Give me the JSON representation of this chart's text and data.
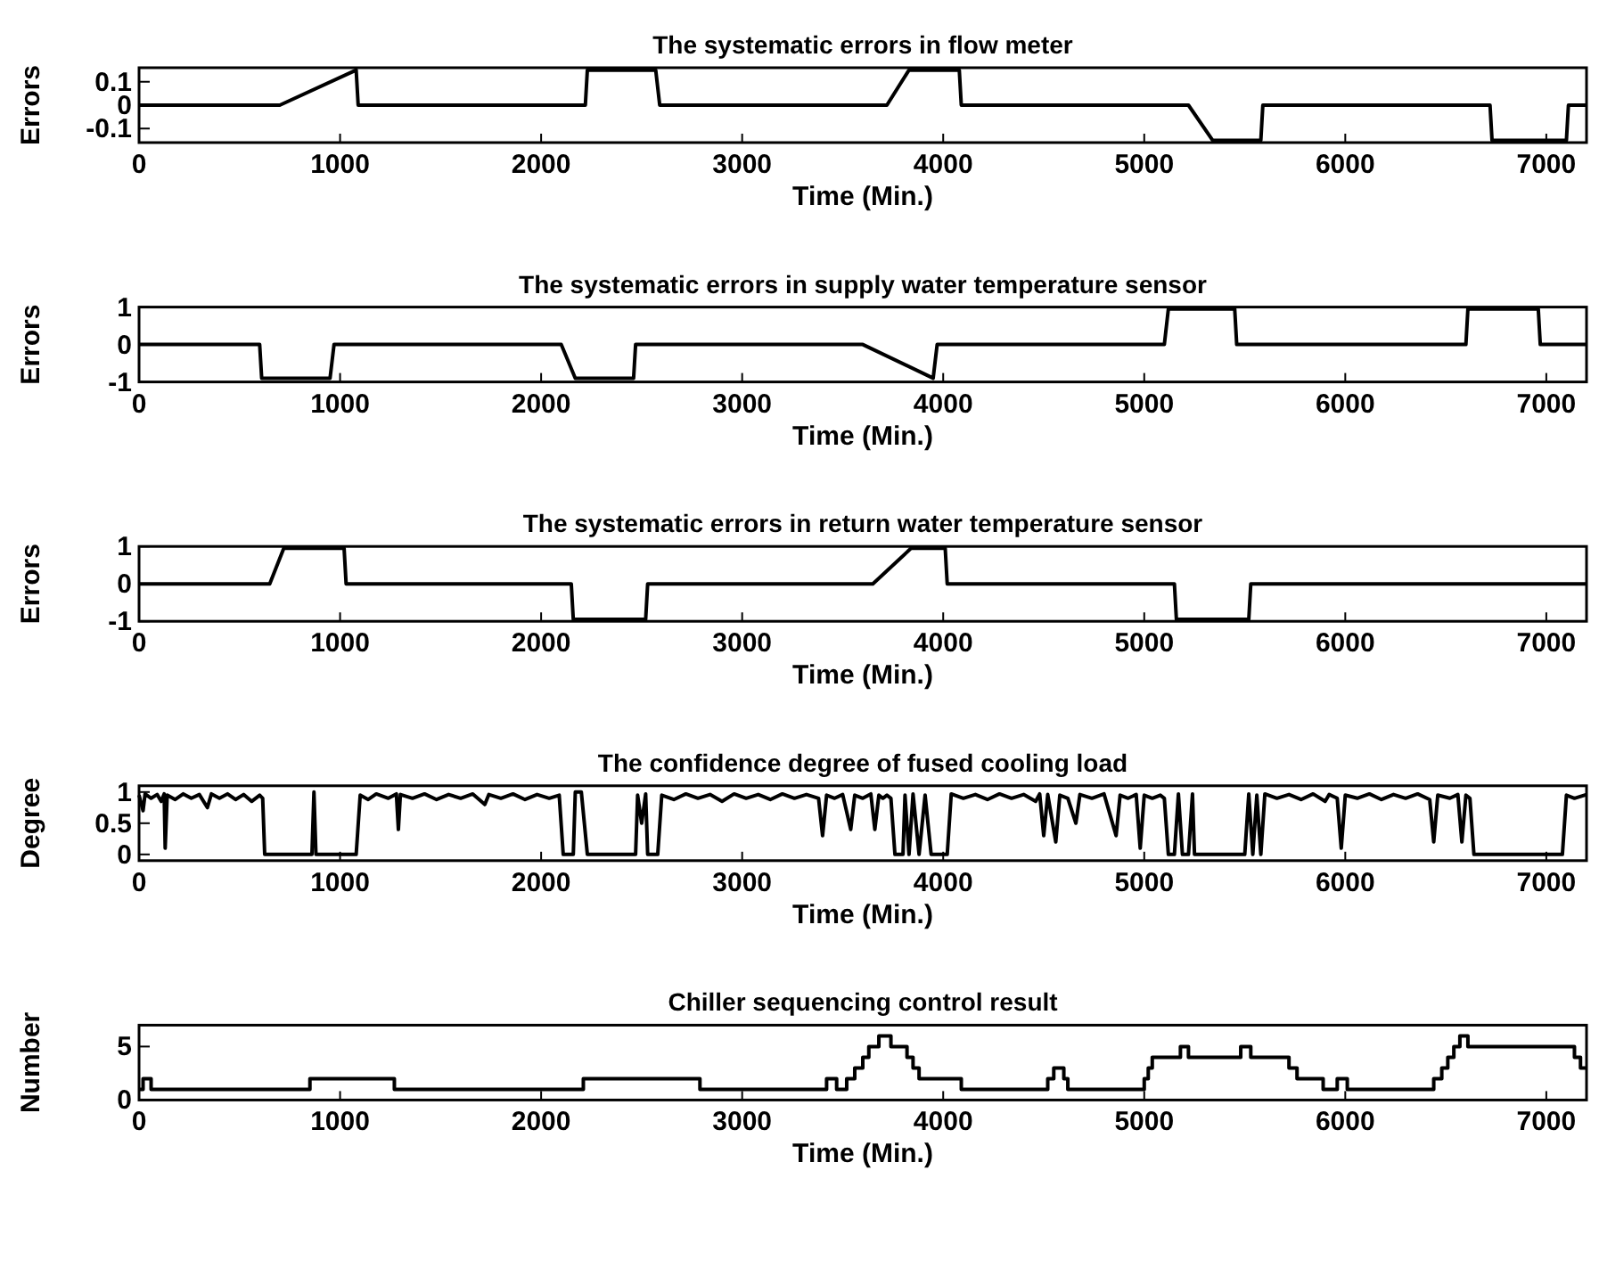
{
  "chart_data": [
    {
      "type": "line",
      "title": "The systematic errors in flow meter",
      "xlabel": "Time (Min.)",
      "ylabel": "Errors",
      "xlim": [
        0,
        7200
      ],
      "xticks": [
        0,
        1000,
        2000,
        3000,
        4000,
        5000,
        6000,
        7000
      ],
      "ylim": [
        -0.16,
        0.16
      ],
      "yticks": [
        -0.1,
        0,
        0.1
      ],
      "color": "#000000",
      "x": [
        0,
        700,
        1080,
        1090,
        2220,
        2230,
        2570,
        2590,
        3720,
        3830,
        4080,
        4090,
        5220,
        5340,
        5580,
        5590,
        6720,
        6730,
        7100,
        7110,
        7200
      ],
      "values": [
        0,
        0,
        0.15,
        0,
        0,
        0.15,
        0.15,
        0,
        0,
        0.15,
        0.15,
        0,
        0,
        -0.15,
        -0.15,
        0,
        0,
        -0.15,
        -0.15,
        0,
        0
      ]
    },
    {
      "type": "line",
      "title": "The systematic errors in supply water temperature sensor",
      "xlabel": "Time (Min.)",
      "ylabel": "Errors",
      "xlim": [
        0,
        7200
      ],
      "xticks": [
        0,
        1000,
        2000,
        3000,
        4000,
        5000,
        6000,
        7000
      ],
      "ylim": [
        -1,
        1
      ],
      "yticks": [
        -1,
        0,
        1
      ],
      "color": "#000000",
      "x": [
        0,
        600,
        610,
        950,
        970,
        2100,
        2170,
        2460,
        2470,
        3600,
        3950,
        3970,
        5100,
        5120,
        5450,
        5460,
        6600,
        6610,
        6960,
        6970,
        7200
      ],
      "values": [
        0,
        0,
        -0.9,
        -0.9,
        0,
        0,
        -0.9,
        -0.9,
        0,
        0,
        -0.9,
        0,
        0,
        0.95,
        0.95,
        0,
        0,
        0.95,
        0.95,
        0,
        0
      ]
    },
    {
      "type": "line",
      "title": "The systematic errors in return water temperature sensor",
      "xlabel": "Time (Min.)",
      "ylabel": "Errors",
      "xlim": [
        0,
        7200
      ],
      "xticks": [
        0,
        1000,
        2000,
        3000,
        4000,
        5000,
        6000,
        7000
      ],
      "ylim": [
        -1,
        1
      ],
      "yticks": [
        -1,
        0,
        1
      ],
      "color": "#000000",
      "x": [
        0,
        650,
        720,
        1020,
        1030,
        2150,
        2160,
        2520,
        2530,
        3650,
        3840,
        4010,
        4020,
        5150,
        5160,
        5520,
        5530,
        7200
      ],
      "values": [
        0,
        0,
        0.95,
        0.95,
        0,
        0,
        -0.95,
        -0.95,
        0,
        0,
        0.95,
        0.95,
        0,
        0,
        -0.95,
        -0.95,
        0,
        0
      ]
    },
    {
      "type": "line",
      "title": "The confidence degree of fused cooling load",
      "xlabel": "Time (Min.)",
      "ylabel": "Degree",
      "xlim": [
        0,
        7200
      ],
      "xticks": [
        0,
        1000,
        2000,
        3000,
        4000,
        5000,
        6000,
        7000
      ],
      "ylim": [
        -0.1,
        1.1
      ],
      "yticks": [
        0,
        0.5,
        1
      ],
      "color": "#000000",
      "x": [
        0,
        20,
        30,
        60,
        90,
        110,
        125,
        130,
        140,
        180,
        220,
        260,
        300,
        340,
        360,
        400,
        440,
        480,
        520,
        560,
        600,
        615,
        625,
        860,
        870,
        880,
        1080,
        1100,
        1140,
        1180,
        1240,
        1280,
        1290,
        1300,
        1360,
        1420,
        1480,
        1540,
        1600,
        1660,
        1720,
        1740,
        1800,
        1860,
        1920,
        1980,
        2040,
        2090,
        2110,
        2160,
        2170,
        2200,
        2230,
        2470,
        2480,
        2500,
        2520,
        2530,
        2580,
        2600,
        2660,
        2720,
        2780,
        2840,
        2900,
        2960,
        3020,
        3080,
        3140,
        3200,
        3260,
        3320,
        3380,
        3400,
        3420,
        3460,
        3500,
        3540,
        3560,
        3600,
        3640,
        3660,
        3680,
        3700,
        3720,
        3740,
        3760,
        3800,
        3810,
        3830,
        3850,
        3880,
        3910,
        3940,
        4020,
        4040,
        4100,
        4160,
        4220,
        4280,
        4340,
        4400,
        4460,
        4480,
        4500,
        4520,
        4560,
        4580,
        4620,
        4660,
        4680,
        4740,
        4800,
        4860,
        4880,
        4920,
        4960,
        4980,
        5000,
        5040,
        5080,
        5100,
        5120,
        5150,
        5170,
        5190,
        5220,
        5240,
        5250,
        5500,
        5520,
        5540,
        5560,
        5580,
        5600,
        5660,
        5720,
        5780,
        5840,
        5900,
        5920,
        5960,
        5980,
        6000,
        6060,
        6120,
        6180,
        6240,
        6300,
        6360,
        6420,
        6440,
        6460,
        6520,
        6560,
        6580,
        6600,
        6620,
        6640,
        7080,
        7100,
        7140,
        7200
      ],
      "values": [
        0.95,
        0.7,
        0.97,
        0.9,
        0.96,
        0.85,
        0.97,
        0.1,
        0.95,
        0.88,
        0.97,
        0.9,
        0.96,
        0.75,
        0.97,
        0.9,
        0.97,
        0.88,
        0.96,
        0.85,
        0.95,
        0.9,
        0,
        0,
        1,
        0,
        0,
        0.95,
        0.88,
        0.97,
        0.9,
        0.97,
        0.4,
        0.96,
        0.9,
        0.97,
        0.88,
        0.96,
        0.9,
        0.97,
        0.8,
        0.96,
        0.9,
        0.97,
        0.88,
        0.96,
        0.9,
        0.95,
        0,
        0,
        1,
        1,
        0,
        0,
        0.95,
        0.5,
        0.97,
        0,
        0,
        0.95,
        0.88,
        0.97,
        0.9,
        0.96,
        0.85,
        0.97,
        0.9,
        0.96,
        0.88,
        0.97,
        0.9,
        0.96,
        0.9,
        0.3,
        0.95,
        0.9,
        0.96,
        0.4,
        0.95,
        0.9,
        0.97,
        0.4,
        0.95,
        0.9,
        0.95,
        0.9,
        0,
        0,
        0.95,
        0,
        0.97,
        0,
        0.95,
        0,
        0,
        0.97,
        0.9,
        0.96,
        0.88,
        0.97,
        0.9,
        0.96,
        0.85,
        0.97,
        0.3,
        0.96,
        0.2,
        0.95,
        0.9,
        0.5,
        0.96,
        0.9,
        0.97,
        0.3,
        0.95,
        0.9,
        0.96,
        0.1,
        0.95,
        0.9,
        0.95,
        0.9,
        0,
        0,
        0.97,
        0,
        0,
        0.97,
        0,
        0,
        0.97,
        0,
        0.95,
        0,
        0.97,
        0.9,
        0.96,
        0.88,
        0.97,
        0.85,
        0.96,
        0.9,
        0.1,
        0.95,
        0.9,
        0.97,
        0.88,
        0.96,
        0.9,
        0.97,
        0.88,
        0.2,
        0.95,
        0.9,
        0.96,
        0.2,
        0.95,
        0.9,
        0,
        0,
        0.95,
        0.9,
        0.96
      ]
    },
    {
      "type": "step",
      "title": "Chiller sequencing control result",
      "xlabel": "Time (Min.)",
      "ylabel": "Number",
      "xlim": [
        0,
        7200
      ],
      "xticks": [
        0,
        1000,
        2000,
        3000,
        4000,
        5000,
        6000,
        7000
      ],
      "ylim": [
        0,
        7
      ],
      "yticks": [
        0,
        5
      ],
      "color": "#000000",
      "x": [
        0,
        20,
        60,
        850,
        1270,
        2210,
        2790,
        3420,
        3470,
        3520,
        3560,
        3600,
        3630,
        3680,
        3740,
        3820,
        3850,
        3880,
        4090,
        4520,
        4550,
        4600,
        4620,
        5000,
        5020,
        5040,
        5180,
        5220,
        5480,
        5530,
        5720,
        5760,
        5890,
        5960,
        6010,
        6440,
        6480,
        6510,
        6540,
        6570,
        6610,
        7140,
        7170,
        7200
      ],
      "values": [
        1,
        2,
        1,
        2,
        1,
        2,
        1,
        2,
        1,
        2,
        3,
        4,
        5,
        6,
        5,
        4,
        3,
        2,
        1,
        2,
        3,
        2,
        1,
        2,
        3,
        4,
        5,
        4,
        5,
        4,
        3,
        2,
        1,
        2,
        1,
        2,
        3,
        4,
        5,
        6,
        5,
        4,
        3,
        3
      ]
    }
  ]
}
